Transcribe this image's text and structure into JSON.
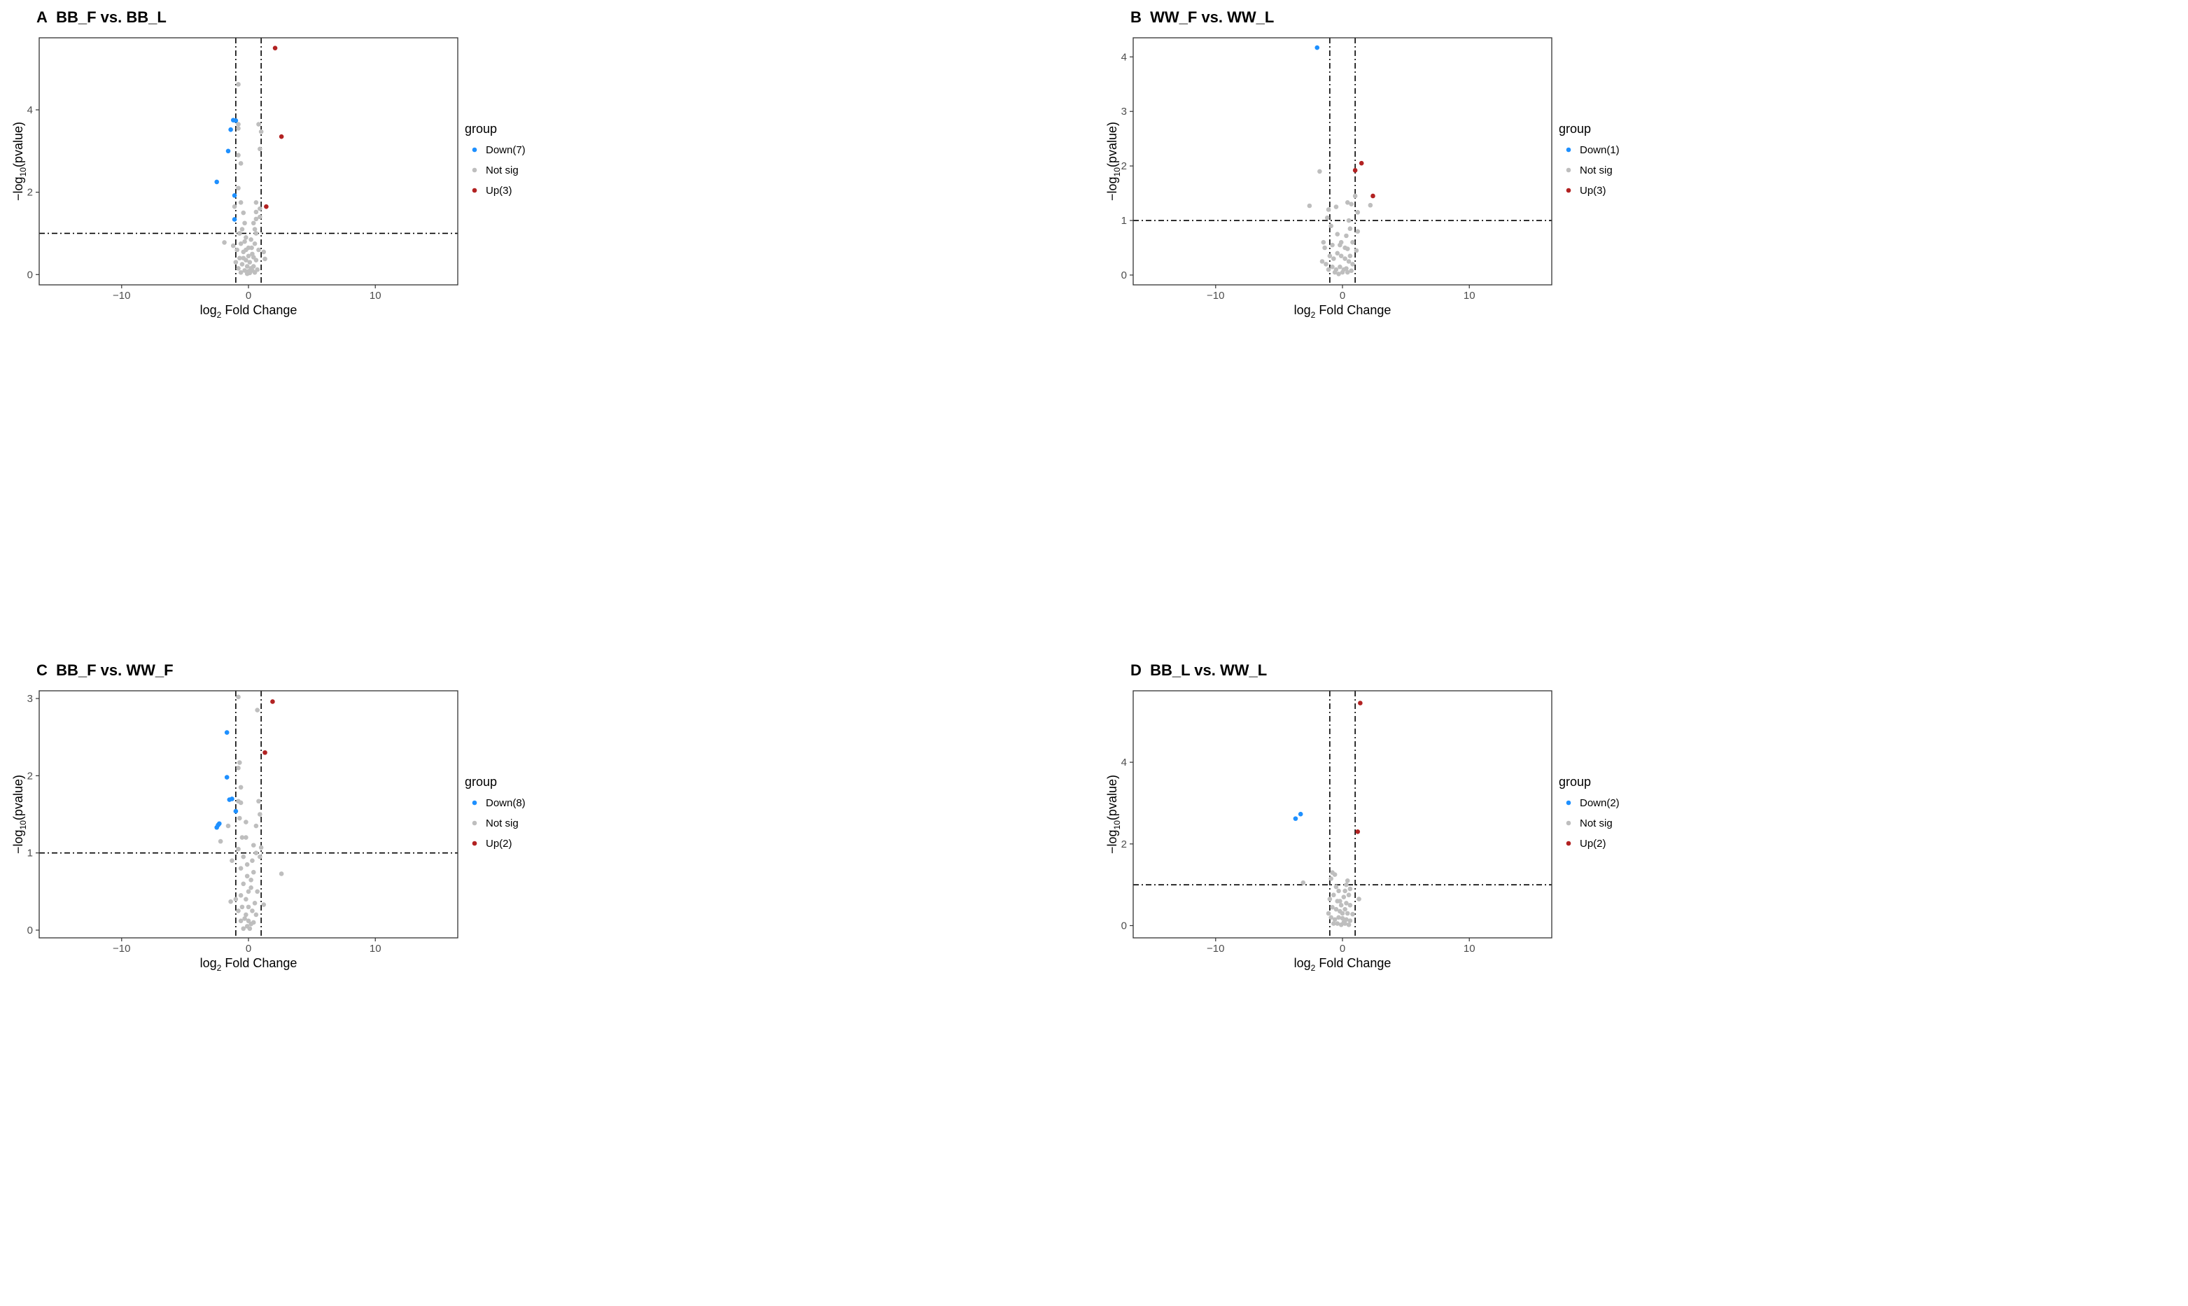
{
  "axes": {
    "xlabel_base": "log",
    "xlabel_sub": "2",
    "xlabel_rest": "Fold Change",
    "ylabel_base": "−log",
    "ylabel_sub": "10",
    "ylabel_rest": "(pvalue)",
    "xticks": [
      "−10",
      "0",
      "10"
    ],
    "xtick_values": [
      -10,
      0,
      10
    ],
    "xlim": [
      -16.5,
      16.5
    ],
    "vlines": [
      -1,
      1
    ],
    "hline": 1
  },
  "legend": {
    "title": "group",
    "down_color": "#1e90ff",
    "notsig_color": "#bebebe",
    "up_color": "#b22222"
  },
  "chart_data": [
    {
      "type": "scatter",
      "letter": "A",
      "title": "BB_F vs. BB_L",
      "ylim": [
        -0.25,
        5.75
      ],
      "yticks": [
        0,
        2,
        4
      ],
      "legend_labels": [
        "Down(7)",
        "Not sig",
        "Up(3)"
      ],
      "down": [
        [
          -1.2,
          3.75
        ],
        [
          -1.0,
          3.74
        ],
        [
          -1.4,
          3.52
        ],
        [
          -1.6,
          3.0
        ],
        [
          -2.5,
          2.25
        ],
        [
          -1.1,
          1.92
        ],
        [
          -1.1,
          1.34
        ]
      ],
      "up": [
        [
          2.1,
          5.5
        ],
        [
          2.6,
          3.35
        ],
        [
          1.4,
          1.65
        ]
      ],
      "notsig": [
        [
          -0.8,
          4.62
        ],
        [
          -0.8,
          3.65
        ],
        [
          -0.8,
          3.55
        ],
        [
          0.8,
          3.65
        ],
        [
          1.0,
          3.47
        ],
        [
          0.9,
          3.05
        ],
        [
          -0.8,
          2.9
        ],
        [
          -0.6,
          2.7
        ],
        [
          -0.8,
          2.1
        ],
        [
          -0.6,
          1.75
        ],
        [
          0.6,
          1.75
        ],
        [
          -1.1,
          1.65
        ],
        [
          0.6,
          1.52
        ],
        [
          0.9,
          1.6
        ],
        [
          0.4,
          1.25
        ],
        [
          -0.4,
          1.5
        ],
        [
          -0.3,
          1.25
        ],
        [
          -0.5,
          1.1
        ],
        [
          0.5,
          1.1
        ],
        [
          -1.9,
          0.78
        ],
        [
          -1.2,
          0.7
        ],
        [
          -0.9,
          0.6
        ],
        [
          -0.6,
          0.75
        ],
        [
          -0.2,
          0.9
        ],
        [
          0.2,
          0.85
        ],
        [
          0.5,
          0.75
        ],
        [
          0.8,
          0.6
        ],
        [
          1.3,
          0.38
        ],
        [
          1.2,
          0.55
        ],
        [
          -1.0,
          0.3
        ],
        [
          -0.7,
          0.4
        ],
        [
          -0.4,
          0.55
        ],
        [
          0.0,
          0.65
        ],
        [
          0.3,
          0.5
        ],
        [
          0.6,
          0.35
        ],
        [
          -0.8,
          0.15
        ],
        [
          -0.5,
          0.25
        ],
        [
          -0.2,
          0.35
        ],
        [
          0.1,
          0.3
        ],
        [
          0.4,
          0.2
        ],
        [
          0.7,
          0.12
        ],
        [
          -0.3,
          0.1
        ],
        [
          0.0,
          0.08
        ],
        [
          0.2,
          0.15
        ],
        [
          -0.1,
          0.2
        ],
        [
          -0.6,
          0.05
        ],
        [
          0.5,
          0.05
        ],
        [
          -0.4,
          0.4
        ],
        [
          0.4,
          0.42
        ],
        [
          0.0,
          0.45
        ],
        [
          -0.1,
          0.02
        ],
        [
          0.1,
          0.04
        ],
        [
          0.3,
          0.1
        ],
        [
          -0.2,
          0.6
        ],
        [
          0.25,
          0.65
        ],
        [
          0.6,
          1.0
        ],
        [
          -0.7,
          1.0
        ],
        [
          0.9,
          1.4
        ],
        [
          0.6,
          1.35
        ],
        [
          -0.3,
          0.8
        ]
      ]
    },
    {
      "type": "scatter",
      "letter": "B",
      "title": "WW_F vs. WW_L",
      "ylim": [
        -0.18,
        4.35
      ],
      "yticks": [
        0,
        1,
        2,
        3,
        4
      ],
      "legend_labels": [
        "Down(1)",
        "Not sig",
        "Up(3)"
      ],
      "down": [
        [
          -2.0,
          4.17
        ]
      ],
      "up": [
        [
          1.5,
          2.05
        ],
        [
          1.0,
          1.92
        ],
        [
          2.4,
          1.45
        ]
      ],
      "notsig": [
        [
          -1.8,
          1.9
        ],
        [
          -2.6,
          1.27
        ],
        [
          1.0,
          1.45
        ],
        [
          1.2,
          1.15
        ],
        [
          2.2,
          1.28
        ],
        [
          0.7,
          1.3
        ],
        [
          0.4,
          1.33
        ],
        [
          -0.5,
          1.25
        ],
        [
          -1.1,
          1.2
        ],
        [
          -1.2,
          1.05
        ],
        [
          0.5,
          1.0
        ],
        [
          -0.9,
          0.9
        ],
        [
          0.6,
          0.85
        ],
        [
          1.2,
          0.8
        ],
        [
          -0.4,
          0.75
        ],
        [
          0.3,
          0.72
        ],
        [
          -0.1,
          0.6
        ],
        [
          0.8,
          0.6
        ],
        [
          -0.8,
          0.55
        ],
        [
          -1.4,
          0.5
        ],
        [
          1.1,
          0.45
        ],
        [
          0.4,
          0.48
        ],
        [
          -1.6,
          0.25
        ],
        [
          -1.3,
          0.2
        ],
        [
          -1.0,
          0.35
        ],
        [
          -0.7,
          0.3
        ],
        [
          -0.4,
          0.4
        ],
        [
          -0.1,
          0.35
        ],
        [
          0.2,
          0.3
        ],
        [
          0.5,
          0.25
        ],
        [
          0.8,
          0.2
        ],
        [
          -1.1,
          0.1
        ],
        [
          -0.8,
          0.15
        ],
        [
          -0.5,
          0.1
        ],
        [
          -0.2,
          0.15
        ],
        [
          0.1,
          0.1
        ],
        [
          0.4,
          0.05
        ],
        [
          0.7,
          0.08
        ],
        [
          -0.3,
          0.02
        ],
        [
          0.0,
          0.05
        ],
        [
          0.3,
          0.12
        ],
        [
          -0.6,
          0.05
        ],
        [
          0.2,
          0.5
        ],
        [
          -0.2,
          0.55
        ],
        [
          0.6,
          0.35
        ],
        [
          -1.5,
          0.6
        ]
      ]
    },
    {
      "type": "scatter",
      "letter": "C",
      "title": "BB_F vs. WW_F",
      "ylim": [
        -0.1,
        3.1
      ],
      "yticks": [
        0,
        1,
        2,
        3
      ],
      "legend_labels": [
        "Down(8)",
        "Not sig",
        "Up(2)"
      ],
      "down": [
        [
          -1.7,
          2.56
        ],
        [
          -1.7,
          1.98
        ],
        [
          -1.3,
          1.7
        ],
        [
          -1.5,
          1.69
        ],
        [
          -1.0,
          1.54
        ],
        [
          -2.3,
          1.38
        ],
        [
          -2.4,
          1.36
        ],
        [
          -2.5,
          1.33
        ]
      ],
      "up": [
        [
          1.9,
          2.96
        ],
        [
          1.3,
          2.3
        ]
      ],
      "notsig": [
        [
          -0.8,
          3.02
        ],
        [
          0.7,
          2.85
        ],
        [
          -0.7,
          2.17
        ],
        [
          -0.8,
          2.1
        ],
        [
          -0.6,
          1.85
        ],
        [
          -0.6,
          1.65
        ],
        [
          -0.8,
          1.67
        ],
        [
          0.8,
          1.67
        ],
        [
          0.9,
          1.5
        ],
        [
          -0.2,
          1.4
        ],
        [
          -1.6,
          1.35
        ],
        [
          -0.7,
          1.45
        ],
        [
          0.6,
          1.35
        ],
        [
          -2.2,
          1.15
        ],
        [
          -0.5,
          1.2
        ],
        [
          -0.2,
          1.2
        ],
        [
          0.4,
          1.1
        ],
        [
          1.0,
          1.07
        ],
        [
          -0.8,
          1.05
        ],
        [
          -1.3,
          0.9
        ],
        [
          -0.4,
          0.95
        ],
        [
          0.3,
          0.9
        ],
        [
          0.9,
          0.95
        ],
        [
          -0.6,
          0.8
        ],
        [
          2.6,
          0.73
        ],
        [
          -0.1,
          0.7
        ],
        [
          0.4,
          0.75
        ],
        [
          -0.4,
          0.6
        ],
        [
          0.2,
          0.55
        ],
        [
          0.7,
          0.5
        ],
        [
          -0.6,
          0.45
        ],
        [
          -1.4,
          0.37
        ],
        [
          -1.0,
          0.4
        ],
        [
          -0.2,
          0.4
        ],
        [
          0.5,
          0.35
        ],
        [
          1.2,
          0.33
        ],
        [
          -0.8,
          0.25
        ],
        [
          -0.5,
          0.3
        ],
        [
          0.0,
          0.3
        ],
        [
          0.3,
          0.25
        ],
        [
          0.6,
          0.2
        ],
        [
          -0.3,
          0.15
        ],
        [
          0.0,
          0.12
        ],
        [
          0.2,
          0.08
        ],
        [
          -0.1,
          0.05
        ],
        [
          0.1,
          0.02
        ],
        [
          -0.6,
          0.12
        ],
        [
          0.4,
          0.1
        ],
        [
          -0.4,
          0.02
        ],
        [
          0.0,
          0.5
        ],
        [
          -0.2,
          0.2
        ],
        [
          0.2,
          0.65
        ],
        [
          0.6,
          1.0
        ],
        [
          -0.1,
          0.85
        ]
      ]
    },
    {
      "type": "scatter",
      "letter": "D",
      "title": "BB_L vs. WW_L",
      "ylim": [
        -0.3,
        5.75
      ],
      "yticks": [
        0,
        2,
        4
      ],
      "legend_labels": [
        "Down(2)",
        "Not sig",
        "Up(2)"
      ],
      "down": [
        [
          -3.3,
          2.73
        ],
        [
          -3.7,
          2.62
        ]
      ],
      "up": [
        [
          1.4,
          5.45
        ],
        [
          1.2,
          2.3
        ]
      ],
      "notsig": [
        [
          -3.1,
          1.05
        ],
        [
          -0.8,
          1.3
        ],
        [
          -0.6,
          1.25
        ],
        [
          -0.9,
          1.15
        ],
        [
          0.4,
          1.1
        ],
        [
          0.3,
          1.0
        ],
        [
          -0.5,
          0.95
        ],
        [
          0.6,
          0.9
        ],
        [
          0.2,
          0.85
        ],
        [
          -0.3,
          0.85
        ],
        [
          0.5,
          0.75
        ],
        [
          -0.7,
          0.75
        ],
        [
          0.1,
          0.7
        ],
        [
          -1.0,
          0.65
        ],
        [
          1.3,
          0.65
        ],
        [
          -0.4,
          0.6
        ],
        [
          0.3,
          0.55
        ],
        [
          -0.1,
          0.5
        ],
        [
          0.6,
          0.5
        ],
        [
          -0.8,
          0.45
        ],
        [
          -0.5,
          0.4
        ],
        [
          0.2,
          0.4
        ],
        [
          -1.1,
          0.3
        ],
        [
          -0.2,
          0.35
        ],
        [
          0.4,
          0.3
        ],
        [
          0.8,
          0.28
        ],
        [
          -0.9,
          0.2
        ],
        [
          -0.6,
          0.15
        ],
        [
          -0.3,
          0.2
        ],
        [
          0.0,
          0.18
        ],
        [
          0.3,
          0.15
        ],
        [
          0.6,
          0.12
        ],
        [
          -0.4,
          0.05
        ],
        [
          -0.1,
          0.02
        ],
        [
          0.2,
          0.05
        ],
        [
          0.5,
          0.02
        ],
        [
          -0.7,
          0.05
        ],
        [
          0.0,
          0.3
        ],
        [
          -0.2,
          0.6
        ],
        [
          0.1,
          0.08
        ]
      ]
    }
  ]
}
